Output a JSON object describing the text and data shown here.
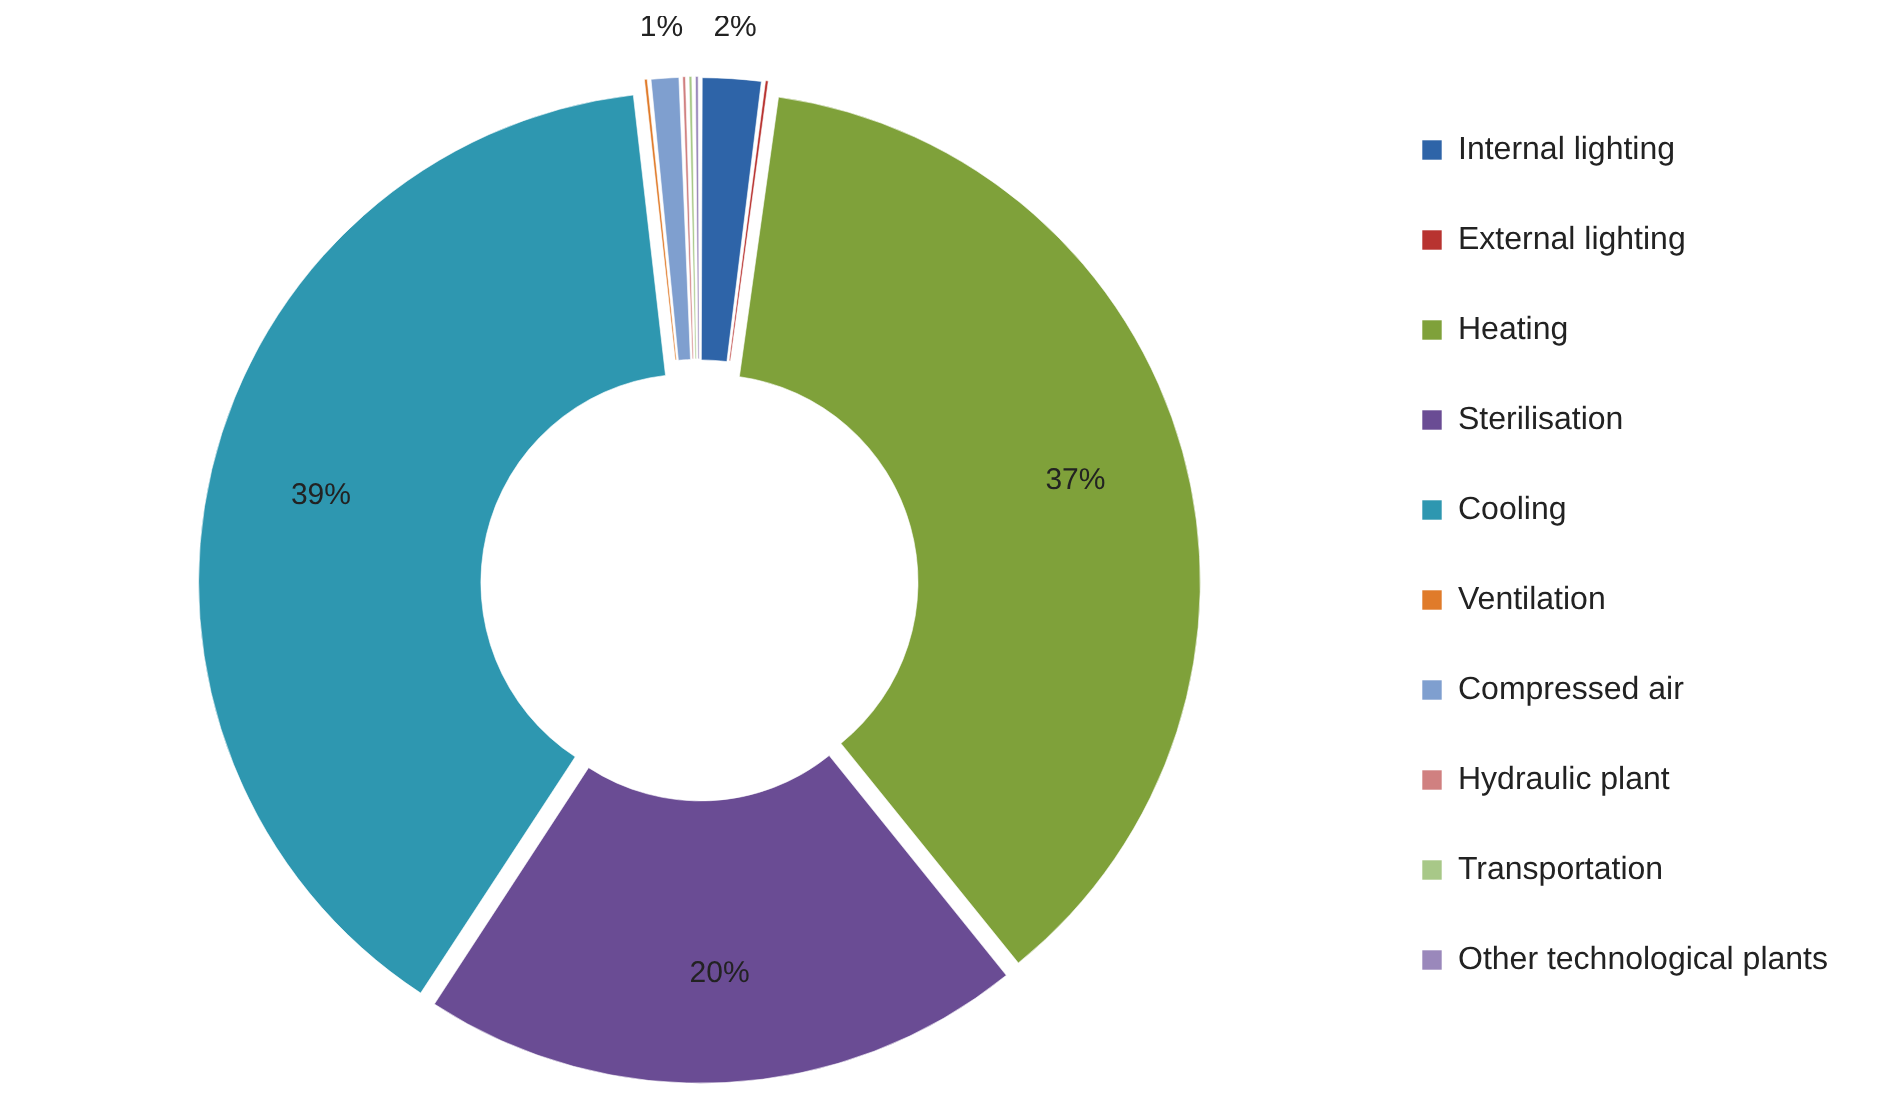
{
  "chart_data": {
    "type": "donut",
    "categories": [
      "Internal lighting",
      "External lighting",
      "Heating",
      "Sterilisation",
      "Cooling",
      "Ventilation",
      "Compressed air",
      "Hydraulic plant",
      "Transportation",
      "Other technological plants"
    ],
    "values": [
      2,
      0.2,
      37,
      20,
      39,
      0.2,
      1,
      0.2,
      0.2,
      0.2
    ],
    "colors": [
      "#2e64a8",
      "#b83330",
      "#7fa13a",
      "#6a4c94",
      "#2e97b0",
      "#e07b2a",
      "#7f9fcf",
      "#d08080",
      "#a8c888",
      "#9a88bb"
    ],
    "value_labels": [
      "2%",
      null,
      "37%",
      "20%",
      "39%",
      null,
      "1%",
      null,
      null,
      null
    ],
    "legend": "right"
  }
}
